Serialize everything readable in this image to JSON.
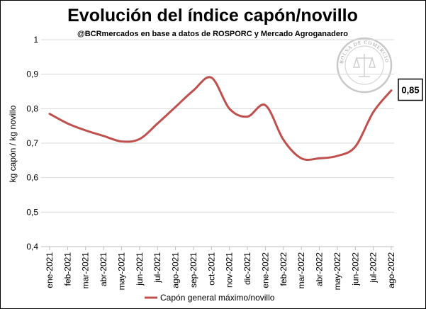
{
  "chart_data": {
    "type": "line",
    "title": "Evolución del índice capón/novillo",
    "subtitle": "@BCRmercados en base a datos de ROSPORC y Mercado Agroganadero",
    "ylabel": "kg capón / kg novillo",
    "xlabel": "",
    "ylim": [
      0.4,
      1.0
    ],
    "yticks": [
      "0,4",
      "0,5",
      "0,6",
      "0,7",
      "0,8",
      "0,9",
      "1"
    ],
    "ytick_values": [
      0.4,
      0.5,
      0.6,
      0.7,
      0.8,
      0.9,
      1.0
    ],
    "grid": "horizontal",
    "legend_position": "bottom",
    "categories": [
      "ene-2021",
      "feb-2021",
      "mar-2021",
      "abr-2021",
      "may-2021",
      "jun-2021",
      "jul-2021",
      "ago-2021",
      "sep-2021",
      "oct-2021",
      "nov-2021",
      "dic-2021",
      "ene-2022",
      "feb-2022",
      "mar-2022",
      "abr-2022",
      "may-2022",
      "jun-2022",
      "jul-2022",
      "ago-2022"
    ],
    "series": [
      {
        "name": "Capón general máximo/novillo",
        "color": "#c0504d",
        "values": [
          0.785,
          0.757,
          0.737,
          0.721,
          0.705,
          0.712,
          0.757,
          0.805,
          0.853,
          0.89,
          0.8,
          0.777,
          0.81,
          0.71,
          0.656,
          0.656,
          0.663,
          0.69,
          0.79,
          0.853
        ]
      }
    ],
    "annotations": [
      {
        "text": "0,85",
        "series": 0,
        "point": "last"
      }
    ]
  },
  "watermark": {
    "text": "BOLSA DE COMERCIO DE ROSARIO",
    "color": "#9a9a9a"
  }
}
